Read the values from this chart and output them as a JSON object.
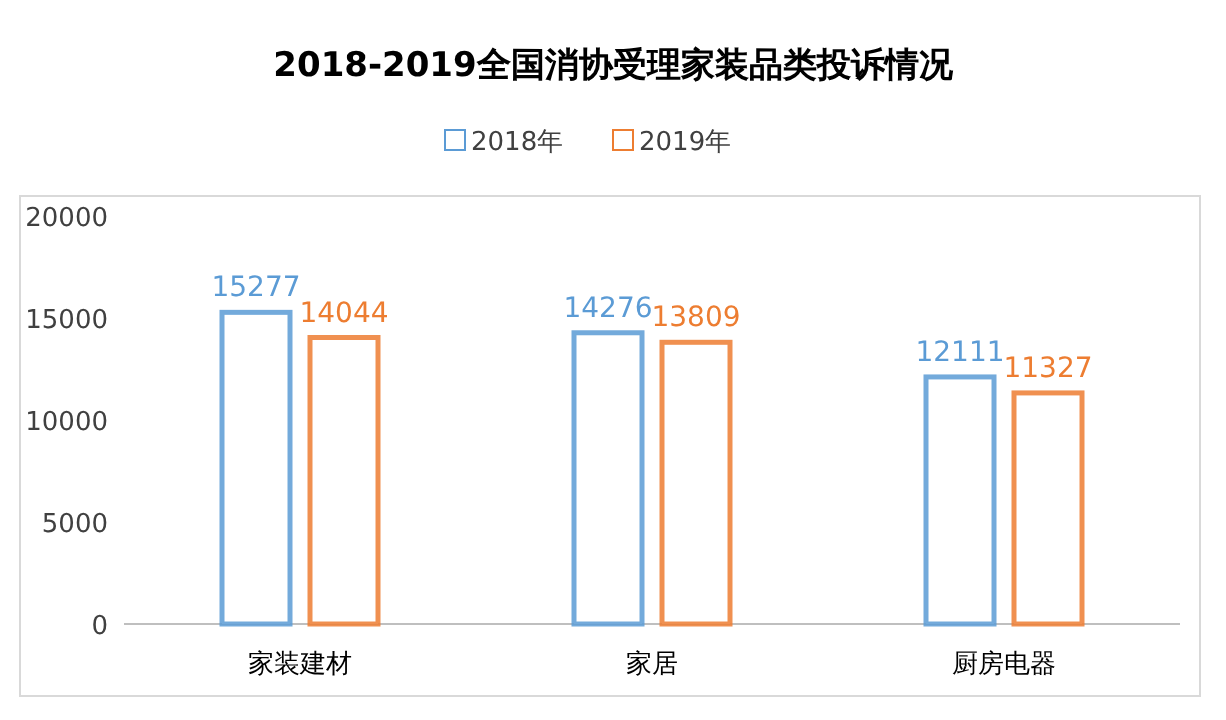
{
  "chart_data": {
    "type": "bar",
    "title": "2018-2019全国消协受理家装品类投诉情况",
    "categories": [
      "家装建材",
      "家居",
      "厨房电器"
    ],
    "series": [
      {
        "name": "2018年",
        "color": "#5b9bd5",
        "values": [
          15277,
          14276,
          12111
        ]
      },
      {
        "name": "2019年",
        "color": "#ed7d31",
        "values": [
          14044,
          13809,
          11327
        ]
      }
    ],
    "ylim": [
      0,
      20000
    ],
    "yticks": [
      0,
      5000,
      10000,
      15000,
      20000
    ],
    "data_labels": true,
    "legend": "top"
  }
}
